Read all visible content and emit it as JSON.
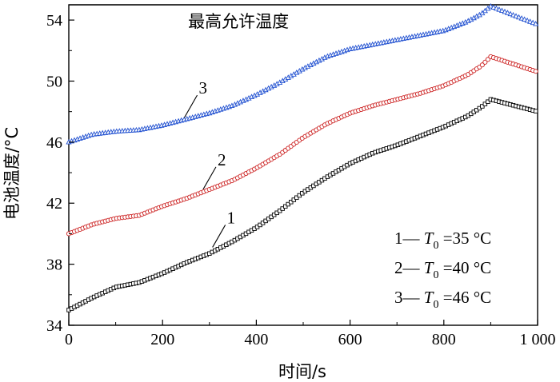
{
  "chart_data": {
    "type": "line",
    "xlabel": "时间/s",
    "ylabel": "电池温度/°C",
    "xlim": [
      0,
      1000
    ],
    "ylim": [
      34,
      55
    ],
    "xticks": [
      0,
      200,
      400,
      600,
      800,
      1000
    ],
    "xtick_labels": [
      "0",
      "200",
      "400",
      "600",
      "800",
      "1 000"
    ],
    "yticks": [
      34,
      38,
      42,
      46,
      50,
      54
    ],
    "ytick_labels": [
      "34",
      "38",
      "42",
      "46",
      "50",
      "54"
    ],
    "grid": false,
    "limit_line": {
      "y": 55,
      "label": "最高允许温度"
    },
    "series": [
      {
        "name": "1",
        "legend": {
          "prefix": "1—",
          "var": "T",
          "sub": "0",
          "value": "=35 °C"
        },
        "marker": "square",
        "color": "#000000",
        "x": [
          0,
          50,
          100,
          150,
          200,
          250,
          300,
          350,
          400,
          450,
          500,
          550,
          600,
          650,
          700,
          750,
          800,
          850,
          880,
          900,
          950,
          1000
        ],
        "y": [
          35.0,
          35.8,
          36.5,
          36.8,
          37.4,
          38.1,
          38.7,
          39.5,
          40.4,
          41.5,
          42.7,
          43.7,
          44.6,
          45.3,
          45.8,
          46.4,
          47.0,
          47.7,
          48.3,
          48.8,
          48.4,
          48.0
        ]
      },
      {
        "name": "2",
        "legend": {
          "prefix": "2—",
          "var": "T",
          "sub": "0",
          "value": "=40 °C"
        },
        "marker": "circle",
        "color": "#cc2222",
        "x": [
          0,
          50,
          100,
          150,
          200,
          250,
          300,
          350,
          400,
          450,
          500,
          550,
          600,
          650,
          700,
          750,
          800,
          850,
          880,
          900,
          950,
          1000
        ],
        "y": [
          40.0,
          40.6,
          41.0,
          41.2,
          41.8,
          42.3,
          42.9,
          43.5,
          44.3,
          45.2,
          46.3,
          47.2,
          47.9,
          48.4,
          48.8,
          49.2,
          49.7,
          50.4,
          51.0,
          51.6,
          51.1,
          50.6
        ]
      },
      {
        "name": "3",
        "legend": {
          "prefix": "3—",
          "var": "T",
          "sub": "0",
          "value": "=46 °C"
        },
        "marker": "triangle",
        "color": "#1f4fd0",
        "x": [
          0,
          50,
          100,
          150,
          200,
          250,
          300,
          350,
          400,
          450,
          500,
          550,
          600,
          650,
          700,
          750,
          800,
          850,
          880,
          900,
          950,
          1000
        ],
        "y": [
          46.0,
          46.5,
          46.7,
          46.8,
          47.1,
          47.5,
          47.9,
          48.4,
          49.1,
          49.9,
          50.8,
          51.6,
          52.1,
          52.4,
          52.7,
          53.0,
          53.3,
          53.9,
          54.4,
          54.9,
          54.3,
          53.7
        ]
      }
    ],
    "series_labels": [
      {
        "text": "1",
        "x": 310,
        "y": 38.9
      },
      {
        "text": "2",
        "x": 290,
        "y": 42.7
      },
      {
        "text": "3",
        "x": 250,
        "y": 47.4
      }
    ]
  }
}
